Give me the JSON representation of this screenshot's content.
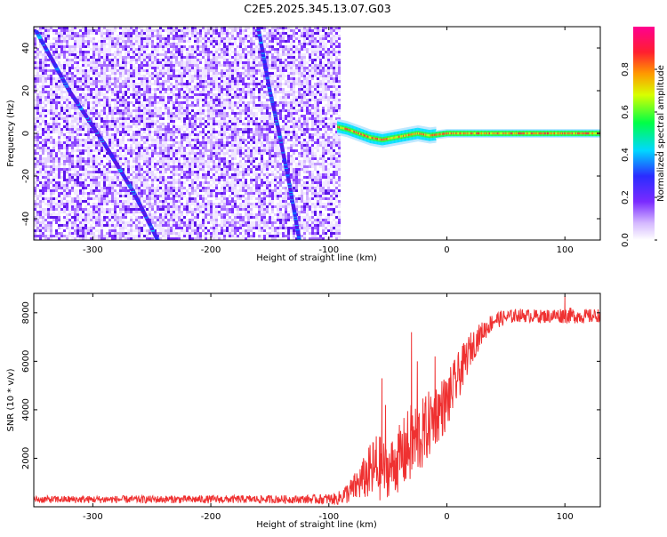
{
  "title": "C2E5.2025.345.13.07.G03",
  "chart_data": [
    {
      "type": "heatmap",
      "xlabel": "Height of straight line (km)",
      "ylabel": "Frequency (Hz)",
      "xlim": [
        -350,
        130
      ],
      "ylim": [
        -50,
        50
      ],
      "xticks": [
        -300,
        -200,
        -100,
        0,
        100
      ],
      "yticks": [
        -40,
        -20,
        0,
        20,
        40
      ],
      "colorbar": {
        "label": "Normalized spectral amplitude",
        "range": [
          0,
          1
        ],
        "ticks": [
          0.0,
          0.2,
          0.4,
          0.6,
          0.8
        ],
        "tick_labels": [
          "0.0",
          "0.2",
          "0.4",
          "0.6",
          "0.8"
        ],
        "colors": [
          "#ffffff",
          "#c9a6ff",
          "#7a2bff",
          "#2a2cff",
          "#00d8ff",
          "#00ff46",
          "#ffff00",
          "#ff7f00",
          "#ff1f2f",
          "#ff0090"
        ]
      },
      "features": {
        "noise_region_x": [
          -350,
          -92
        ],
        "carrier_start_x": -93,
        "carrier_line": [
          [
            -93,
            3
          ],
          [
            -85,
            2
          ],
          [
            -75,
            0
          ],
          [
            -65,
            -2
          ],
          [
            -55,
            -3
          ],
          [
            -45,
            -2
          ],
          [
            -35,
            -1
          ],
          [
            -25,
            0
          ],
          [
            -15,
            -1
          ],
          [
            0,
            0
          ],
          [
            50,
            0
          ],
          [
            130,
            0
          ]
        ],
        "streak_1": [
          [
            -348,
            48
          ],
          [
            -320,
            20
          ],
          [
            -290,
            -5
          ],
          [
            -265,
            -28
          ],
          [
            -245,
            -50
          ]
        ],
        "streak_2": [
          [
            -160,
            50
          ],
          [
            -150,
            20
          ],
          [
            -142,
            0
          ],
          [
            -133,
            -25
          ],
          [
            -125,
            -50
          ]
        ]
      }
    },
    {
      "type": "line",
      "xlabel": "Height of straight line (km)",
      "ylabel": "SNR (10 * v/v)",
      "xlim": [
        -350,
        130
      ],
      "ylim": [
        0,
        8800
      ],
      "xticks": [
        -300,
        -200,
        -100,
        0,
        100
      ],
      "yticks": [
        2000,
        4000,
        6000,
        8000
      ],
      "color": "#ef3131",
      "envelope": {
        "x": [
          -350,
          -120,
          -93,
          -80,
          -70,
          -60,
          -50,
          -40,
          -30,
          -20,
          -10,
          0,
          10,
          20,
          30,
          40,
          60,
          80,
          100,
          120,
          130
        ],
        "mean": [
          300,
          310,
          320,
          700,
          1200,
          1600,
          1500,
          2000,
          2600,
          3000,
          3800,
          4300,
          5400,
          6500,
          7200,
          7700,
          7900,
          7850,
          7900,
          7850,
          7900
        ],
        "amp": [
          150,
          170,
          250,
          550,
          900,
          1500,
          1100,
          1400,
          1700,
          1500,
          1300,
          1200,
          1000,
          700,
          450,
          350,
          280,
          280,
          330,
          300,
          280
        ]
      },
      "spikes": [
        [
          -55,
          5300
        ],
        [
          -30,
          7200
        ],
        [
          -25,
          6000
        ],
        [
          -10,
          6200
        ],
        [
          100,
          8700
        ],
        [
          -52,
          4200
        ]
      ]
    }
  ]
}
